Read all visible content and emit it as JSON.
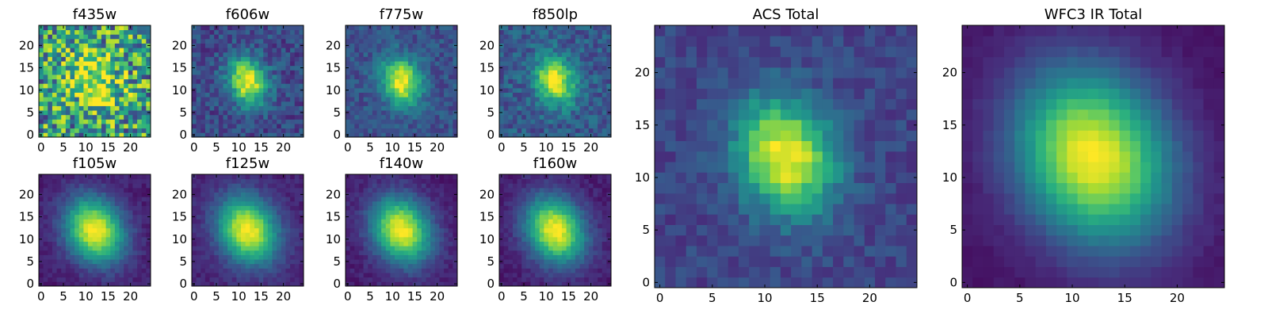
{
  "chart_data": {
    "type": "heatmap",
    "colormap": "viridis",
    "colormap_stops": [
      "#440154",
      "#472d7b",
      "#3b528b",
      "#2c728e",
      "#21918c",
      "#28ae80",
      "#5ec962",
      "#addc30",
      "#fde725"
    ],
    "grid_size": [
      25,
      25
    ],
    "panels": [
      {
        "title": "f435w",
        "xticks": [
          0,
          5,
          10,
          15,
          20
        ],
        "yticks": [
          0,
          5,
          10,
          15,
          20
        ],
        "xlim": [
          0,
          25
        ],
        "ylim": [
          0,
          25
        ],
        "center": [
          12,
          12
        ],
        "peak_sigma": [
          4.0,
          4.5
        ],
        "noise": 0.8,
        "background": 0.55
      },
      {
        "title": "f606w",
        "xticks": [
          0,
          5,
          10,
          15,
          20
        ],
        "yticks": [
          0,
          5,
          10,
          15,
          20
        ],
        "xlim": [
          0,
          25
        ],
        "ylim": [
          0,
          25
        ],
        "center": [
          12,
          12
        ],
        "peak_sigma": [
          3.0,
          3.6
        ],
        "noise": 0.25,
        "background": 0.22
      },
      {
        "title": "f775w",
        "xticks": [
          0,
          5,
          10,
          15,
          20
        ],
        "yticks": [
          0,
          5,
          10,
          15,
          20
        ],
        "xlim": [
          0,
          25
        ],
        "ylim": [
          0,
          25
        ],
        "center": [
          12,
          12
        ],
        "peak_sigma": [
          3.0,
          3.6
        ],
        "noise": 0.2,
        "background": 0.25
      },
      {
        "title": "f850lp",
        "xticks": [
          0,
          5,
          10,
          15,
          20
        ],
        "yticks": [
          0,
          5,
          10,
          15,
          20
        ],
        "xlim": [
          0,
          25
        ],
        "ylim": [
          0,
          25
        ],
        "center": [
          12,
          12
        ],
        "peak_sigma": [
          3.0,
          3.6
        ],
        "noise": 0.25,
        "background": 0.28
      },
      {
        "title": "f105w",
        "xticks": [
          0,
          5,
          10,
          15,
          20
        ],
        "yticks": [
          0,
          5,
          10,
          15,
          20
        ],
        "xlim": [
          0,
          25
        ],
        "ylim": [
          0,
          25
        ],
        "center": [
          12,
          12
        ],
        "peak_sigma": [
          4.5,
          5.0
        ],
        "noise": 0.1,
        "background": 0.08
      },
      {
        "title": "f125w",
        "xticks": [
          0,
          5,
          10,
          15,
          20
        ],
        "yticks": [
          0,
          5,
          10,
          15,
          20
        ],
        "xlim": [
          0,
          25
        ],
        "ylim": [
          0,
          25
        ],
        "center": [
          12,
          12
        ],
        "peak_sigma": [
          4.5,
          5.0
        ],
        "noise": 0.1,
        "background": 0.1
      },
      {
        "title": "f140w",
        "xticks": [
          0,
          5,
          10,
          15,
          20
        ],
        "yticks": [
          0,
          5,
          10,
          15,
          20
        ],
        "xlim": [
          0,
          25
        ],
        "ylim": [
          0,
          25
        ],
        "center": [
          12,
          12
        ],
        "peak_sigma": [
          4.5,
          5.0
        ],
        "noise": 0.1,
        "background": 0.08
      },
      {
        "title": "f160w",
        "xticks": [
          0,
          5,
          10,
          15,
          20
        ],
        "yticks": [
          0,
          5,
          10,
          15,
          20
        ],
        "xlim": [
          0,
          25
        ],
        "ylim": [
          0,
          25
        ],
        "center": [
          12,
          12
        ],
        "peak_sigma": [
          4.5,
          5.0
        ],
        "noise": 0.1,
        "background": 0.08
      },
      {
        "title": "ACS Total",
        "xticks": [
          0,
          5,
          10,
          15,
          20
        ],
        "yticks": [
          0,
          5,
          10,
          15,
          20
        ],
        "xlim": [
          0,
          25
        ],
        "ylim": [
          0,
          25
        ],
        "center": [
          12,
          12
        ],
        "peak_sigma": [
          3.2,
          3.8
        ],
        "noise": 0.16,
        "background": 0.2
      },
      {
        "title": "WFC3 IR Total",
        "xticks": [
          0,
          5,
          10,
          15,
          20
        ],
        "yticks": [
          0,
          5,
          10,
          15,
          20
        ],
        "xlim": [
          0,
          25
        ],
        "ylim": [
          0,
          25
        ],
        "center": [
          12,
          12
        ],
        "peak_sigma": [
          5.0,
          5.6
        ],
        "noise": 0.04,
        "background": 0.05
      }
    ]
  }
}
